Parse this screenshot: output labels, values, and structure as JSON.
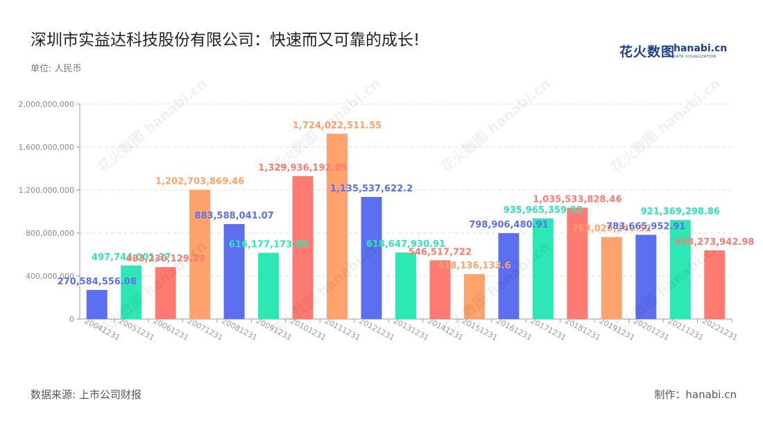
{
  "title": "深圳市实益达科技股份有限公司：快速而又可靠的成长!",
  "unit_label": "单位: 人民币",
  "source": "数据来源: 上市公司财报",
  "maker": "制作：hanabi.cn",
  "logo": {
    "cn": "花火数图",
    "en": "hanabi.cn",
    "sub": "DATA VISUALIZATION"
  },
  "watermark_text": "花火数图 hanabi.cn",
  "colors": [
    "#5b6ff0",
    "#2de8b4",
    "#ff7a70",
    "#ffa26b"
  ],
  "chart_data": {
    "type": "bar",
    "title": "深圳市实益达科技股份有限公司：快速而又可靠的成长!",
    "xlabel": "",
    "ylabel": "单位: 人民币",
    "ylim": [
      0,
      2000000000
    ],
    "yticks": [
      0,
      400000000,
      800000000,
      1200000000,
      1600000000,
      2000000000
    ],
    "ytick_labels": [
      "0",
      "400,000,000",
      "800,000,000",
      "1,200,000,000",
      "1,600,000,000",
      "2,000,000,000"
    ],
    "grid": true,
    "categories": [
      "20041231",
      "20051231",
      "20061231",
      "20071231",
      "20081231",
      "20091231",
      "20101231",
      "20111231",
      "20121231",
      "20131231",
      "20141231",
      "20151231",
      "20161231",
      "20171231",
      "20181231",
      "20191231",
      "20201231",
      "20211231",
      "20221231"
    ],
    "values": [
      270584556.08,
      497744001.37,
      483230129.29,
      1202703869.46,
      883588041.07,
      616177173.89,
      1329936192.05,
      1724022511.55,
      1135537622.2,
      618647930.91,
      546517722,
      418136133.6,
      798906480.91,
      935965359.52,
      1035533828.46,
      763029240.52,
      783665952.91,
      921369298.86,
      638273942.98
    ],
    "value_labels": [
      "270,584,556.08",
      "497,744,001.37",
      "483,230,129.29",
      "1,202,703,869.46",
      "883,588,041.07",
      "616,177,173.89",
      "1,329,936,192.05",
      "1,724,022,511.55",
      "1,135,537,622.2",
      "618,647,930.91",
      "546,517,722",
      "418,136,133.6",
      "798,906,480.91",
      "935,965,359.52",
      "1,035,533,828.46",
      "763,029,240.52",
      "783,665,952.91",
      "921,369,298.86",
      "638,273,942.98"
    ]
  }
}
